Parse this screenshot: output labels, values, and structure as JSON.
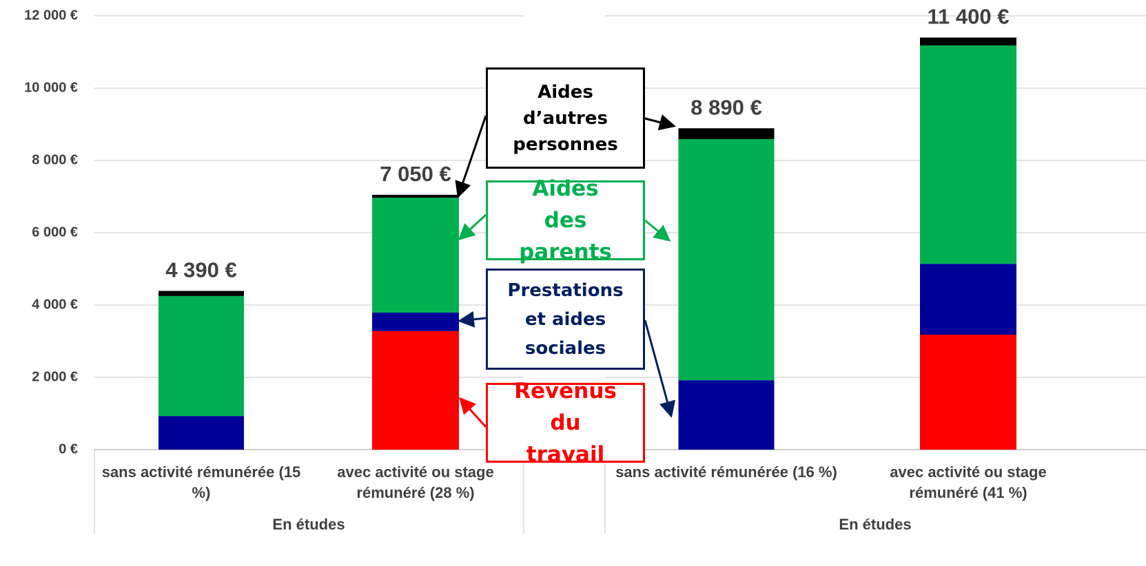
{
  "chart_data": {
    "type": "stacked-bar",
    "categories": [
      "sans activité rémunérée (15 %)",
      "avec activité ou stage rémunéré (28 %)",
      "sans activité rémunérée (16 %)",
      "avec activité ou stage rémunéré (41 %)"
    ],
    "groups": [
      "En études",
      "En études"
    ],
    "series": [
      {
        "name": "Revenus du travail",
        "color": "#ff0000",
        "values": [
          0,
          3280,
          0,
          3180
        ]
      },
      {
        "name": "Prestations et aides sociales",
        "color": "#000099",
        "values": [
          930,
          510,
          1920,
          1960
        ]
      },
      {
        "name": "Aides des parents",
        "color": "#00b050",
        "values": [
          3320,
          3180,
          6670,
          6040
        ]
      },
      {
        "name": "Aides d’autres personnes",
        "color": "#000000",
        "values": [
          140,
          80,
          300,
          220
        ]
      }
    ],
    "totals": [
      4390,
      7050,
      8890,
      11400
    ],
    "value_labels": [
      "4 390 €",
      "7 050 €",
      "8 890 €",
      "11 400 €"
    ],
    "ylim": [
      0,
      12000
    ],
    "yticks": [
      {
        "value": 0,
        "label": "0 €"
      },
      {
        "value": 2000,
        "label": "2 000 €"
      },
      {
        "value": 4000,
        "label": "4 000 €"
      },
      {
        "value": 6000,
        "label": "6 000 €"
      },
      {
        "value": 8000,
        "label": "8 000 €"
      },
      {
        "value": 10000,
        "label": "10 000 €"
      },
      {
        "value": 12000,
        "label": "12 000 €"
      }
    ],
    "grid": true
  }
}
